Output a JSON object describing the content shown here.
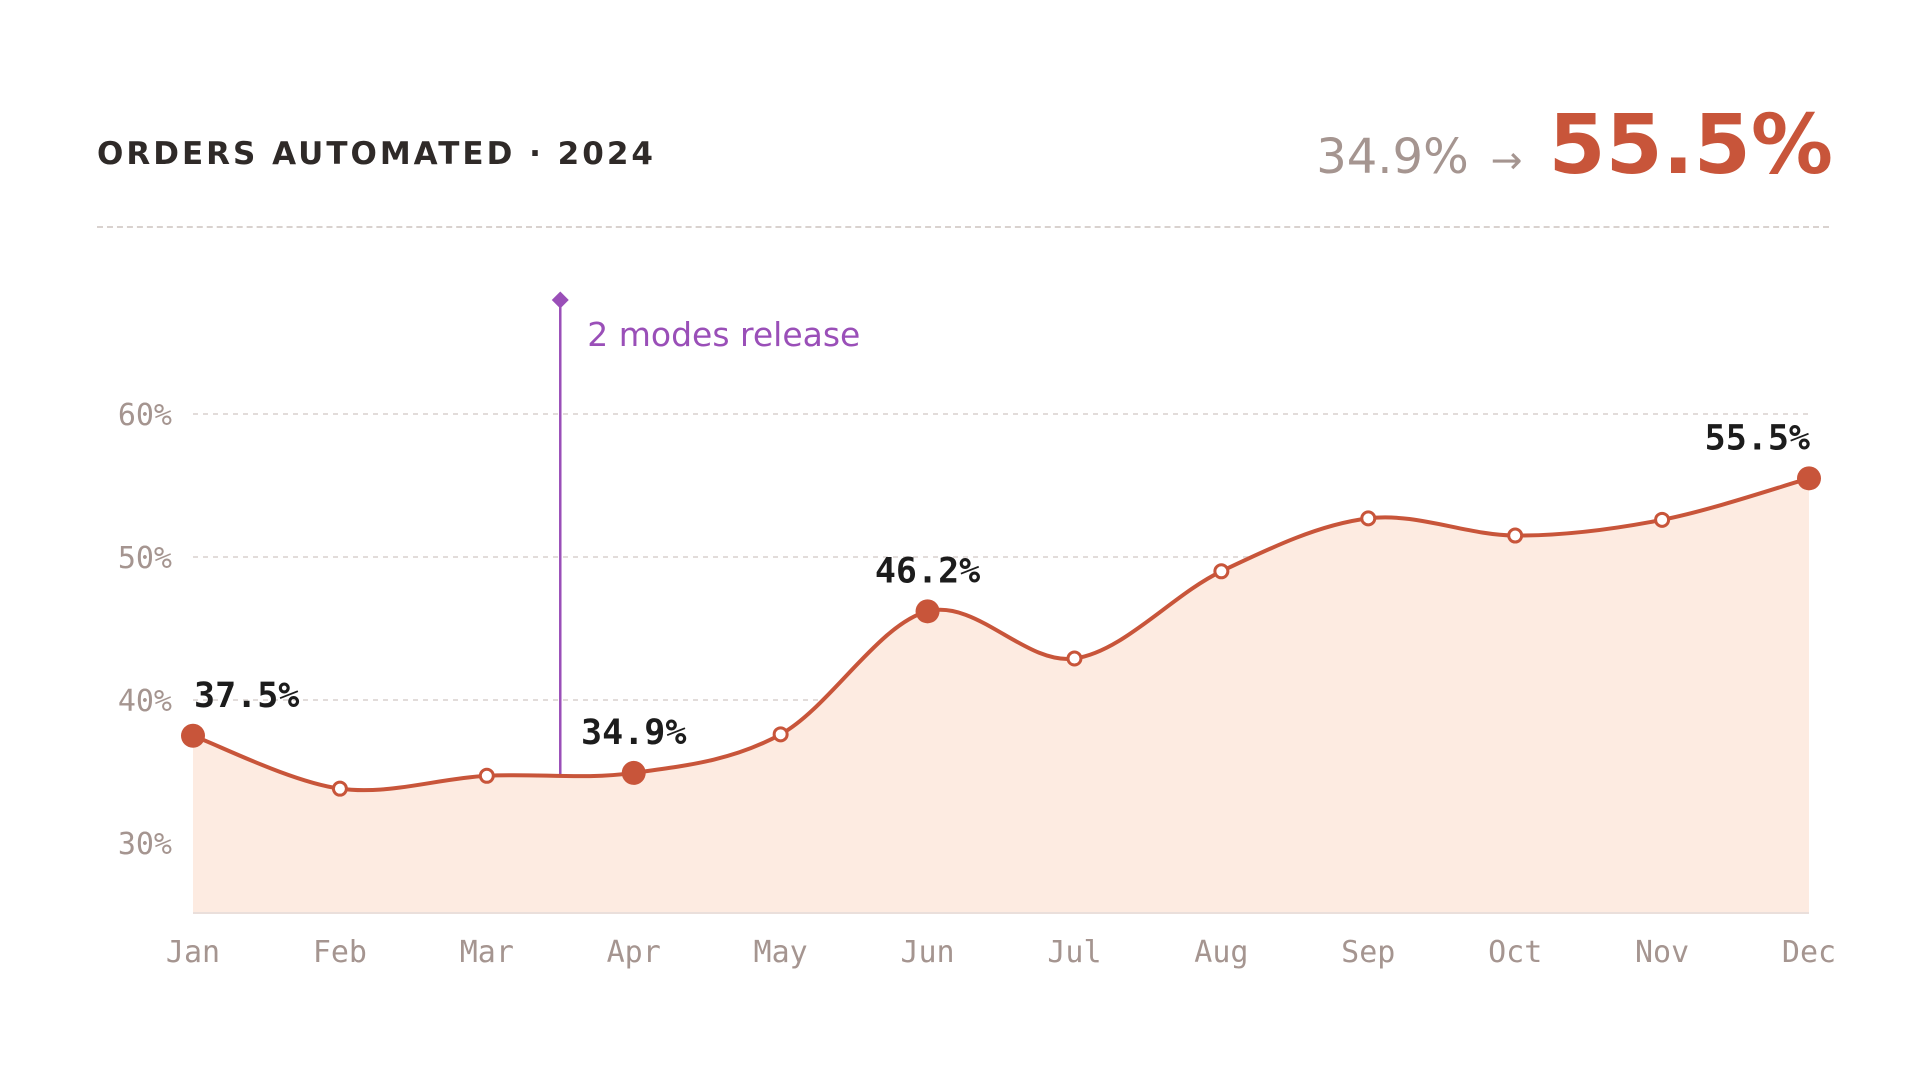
{
  "header": {
    "title": "ORDERS AUTOMATED · 2024",
    "kpi_from": "34.9%",
    "kpi_arrow": "→",
    "kpi_to": "55.5%"
  },
  "colors": {
    "line": "#c8553a",
    "area": "#fdebe1",
    "annotation": "#9a4fb8",
    "grid": "#e2dcda",
    "muted": "#a59590"
  },
  "chart_data": {
    "type": "area",
    "categories": [
      "Jan",
      "Feb",
      "Mar",
      "Apr",
      "May",
      "Jun",
      "Jul",
      "Aug",
      "Sep",
      "Oct",
      "Nov",
      "Dec"
    ],
    "values": [
      37.5,
      33.8,
      34.7,
      34.9,
      37.6,
      46.2,
      42.9,
      49.0,
      52.7,
      51.5,
      52.6,
      55.5
    ],
    "highlighted": [
      "Jan",
      "Apr",
      "Jun",
      "Dec"
    ],
    "data_labels": [
      {
        "category": "Jan",
        "text": "37.5%"
      },
      {
        "category": "Apr",
        "text": "34.9%"
      },
      {
        "category": "Jun",
        "text": "46.2%"
      },
      {
        "category": "Dec",
        "text": "55.5%"
      }
    ],
    "y_ticks": [
      {
        "value": 30,
        "label": "30%"
      },
      {
        "value": 40,
        "label": "40%"
      },
      {
        "value": 50,
        "label": "50%"
      },
      {
        "value": 60,
        "label": "60%"
      }
    ],
    "ylim": [
      25,
      60
    ],
    "grid": true,
    "annotation": {
      "after_category": "Mar",
      "position": 0.5,
      "text": "2 modes release"
    }
  }
}
